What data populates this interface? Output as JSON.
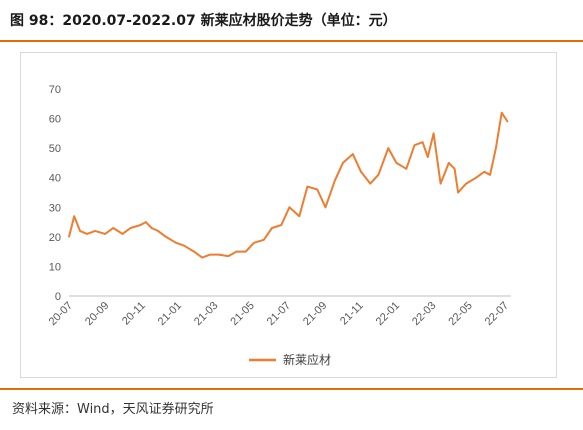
{
  "header": {
    "title": "图 98：2020.07-2022.07 新莱应材股价走势（单位：元）"
  },
  "footer": {
    "source": "资料来源：Wind，天风证券研究所"
  },
  "colors": {
    "accent": "#e36c09",
    "line": "#ed7d31",
    "axis": "#595959"
  },
  "chart_data": {
    "type": "line",
    "title": "",
    "xlabel": "",
    "ylabel": "",
    "ylim": [
      0,
      70
    ],
    "y_ticks": [
      0,
      10,
      20,
      30,
      40,
      50,
      60,
      70
    ],
    "x_tick_labels": [
      "20-07",
      "20-09",
      "20-11",
      "21-01",
      "21-03",
      "21-05",
      "21-07",
      "21-09",
      "21-11",
      "22-01",
      "22-03",
      "22-05",
      "22-07"
    ],
    "grid": false,
    "legend_position": "bottom",
    "series": [
      {
        "name": "新莱应材",
        "x": [
          "2020-07-01",
          "2020-07-10",
          "2020-07-20",
          "2020-08-01",
          "2020-08-15",
          "2020-09-01",
          "2020-09-15",
          "2020-10-01",
          "2020-10-15",
          "2020-11-01",
          "2020-11-10",
          "2020-11-20",
          "2020-12-01",
          "2020-12-15",
          "2021-01-01",
          "2021-01-15",
          "2021-02-01",
          "2021-02-15",
          "2021-03-01",
          "2021-03-15",
          "2021-04-01",
          "2021-04-15",
          "2021-05-01",
          "2021-05-15",
          "2021-06-01",
          "2021-06-15",
          "2021-07-01",
          "2021-07-15",
          "2021-08-01",
          "2021-08-15",
          "2021-09-01",
          "2021-09-15",
          "2021-10-01",
          "2021-10-15",
          "2021-11-01",
          "2021-11-15",
          "2021-12-01",
          "2021-12-15",
          "2022-01-01",
          "2022-01-15",
          "2022-02-01",
          "2022-02-15",
          "2022-03-01",
          "2022-03-10",
          "2022-03-20",
          "2022-04-01",
          "2022-04-15",
          "2022-04-25",
          "2022-05-01",
          "2022-05-15",
          "2022-06-01",
          "2022-06-15",
          "2022-06-25",
          "2022-07-05",
          "2022-07-15",
          "2022-07-25"
        ],
        "values": [
          20,
          27,
          22,
          21,
          22,
          21,
          23,
          21,
          23,
          24,
          25,
          23,
          22,
          20,
          18,
          17,
          15,
          13,
          14,
          14,
          13.5,
          15,
          15,
          18,
          19,
          23,
          24,
          30,
          27,
          37,
          36,
          30,
          39,
          45,
          48,
          42,
          38,
          41,
          50,
          45,
          43,
          51,
          52,
          47,
          55,
          38,
          45,
          43,
          35,
          38,
          40,
          42,
          41,
          50,
          62,
          59
        ]
      }
    ]
  }
}
